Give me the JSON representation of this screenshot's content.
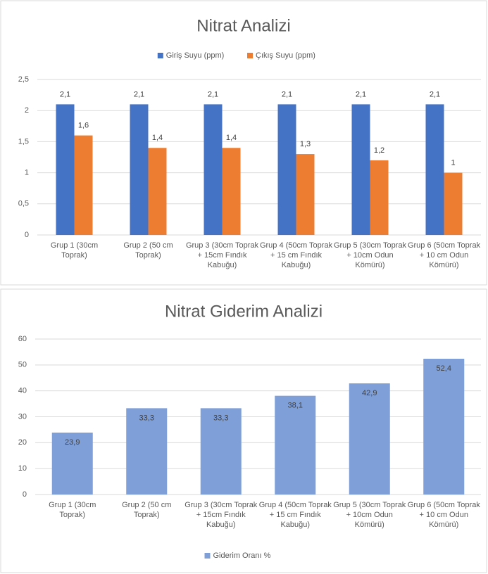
{
  "chart_data": [
    {
      "type": "bar",
      "title": "Nitrat Analizi",
      "categories": [
        "Grup 1 (30cm Toprak)",
        "Grup 2 (50 cm Toprak)",
        "Grup 3 (30cm Toprak + 15cm Fındık Kabuğu)",
        "Grup 4 (50cm Toprak + 15 cm Fındık Kabuğu)",
        "Grup 5 (30cm Toprak + 10cm Odun Kömürü)",
        "Grup 6 (50cm Toprak + 10 cm Odun Kömürü)"
      ],
      "series": [
        {
          "name": "Giriş Suyu (ppm)",
          "color": "#4472c4",
          "values": [
            2.1,
            2.1,
            2.1,
            2.1,
            2.1,
            2.1
          ],
          "value_labels": [
            "2,1",
            "2,1",
            "2,1",
            "2,1",
            "2,1",
            "2,1"
          ]
        },
        {
          "name": "Çıkış Suyu (ppm)",
          "color": "#ed7d31",
          "values": [
            1.6,
            1.4,
            1.4,
            1.3,
            1.2,
            1
          ],
          "value_labels": [
            "1,6",
            "1,4",
            "1,4",
            "1,3",
            "1,2",
            "1"
          ]
        }
      ],
      "ylim": [
        0,
        2.5
      ],
      "yticks": [
        0,
        {
          "value": 0.5,
          "label": "0,5"
        },
        1,
        {
          "value": 1.5,
          "label": "1,5"
        },
        2,
        {
          "value": 2.5,
          "label": "2,5"
        }
      ],
      "grid": true,
      "legend": "top"
    },
    {
      "type": "bar",
      "title": "Nitrat Giderim Analizi",
      "categories": [
        "Grup 1 (30cm Toprak)",
        "Grup 2 (50 cm Toprak)",
        "Grup 3 (30cm Toprak + 15cm Fındık Kabuğu)",
        "Grup 4 (50cm Toprak + 15 cm Fındık Kabuğu)",
        "Grup 5 (30cm Toprak + 10cm Odun Kömürü)",
        "Grup 6 (50cm Toprak + 10 cm Odun Kömürü)"
      ],
      "series": [
        {
          "name": "Giderim Oranı %",
          "color": "#7f9fd9",
          "values": [
            23.9,
            33.3,
            33.3,
            38.1,
            42.9,
            52.4
          ],
          "value_labels": [
            "23,9",
            "33,3",
            "33,3",
            "38,1",
            "42,9",
            "52,4"
          ]
        }
      ],
      "ylim": [
        0,
        60
      ],
      "yticks": [
        0,
        10,
        20,
        30,
        40,
        50,
        60
      ],
      "grid": true,
      "legend": "bottom"
    }
  ]
}
